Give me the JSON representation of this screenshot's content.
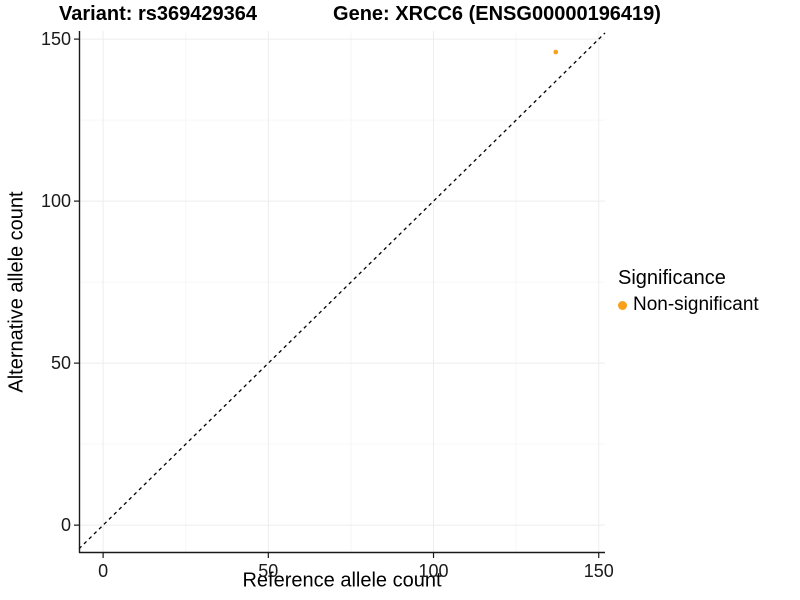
{
  "header": {
    "title_left": "Variant: rs369429364",
    "title_right": "Gene: XRCC6 (ENSG00000196419)"
  },
  "chart_data": {
    "type": "scatter",
    "title_left": "Variant: rs369429364",
    "title_right": "Gene: XRCC6 (ENSG00000196419)",
    "xlabel": "Reference allele count",
    "ylabel": "Alternative allele count",
    "x_ticks": [
      0,
      50,
      100,
      150
    ],
    "y_ticks": [
      0,
      50,
      100,
      150
    ],
    "x_minor_ticks": [
      25,
      75,
      125
    ],
    "y_minor_ticks": [
      25,
      75,
      125
    ],
    "xlim": [
      -7.3,
      151.9
    ],
    "ylim": [
      -8.6,
      152.5
    ],
    "grid": "faint major and minor gridlines on white panel",
    "identity_line": {
      "equation": "y = x",
      "style": "dashed",
      "color": "#000000"
    },
    "points": [
      {
        "x": 137,
        "y": 146,
        "series": "Non-significant"
      }
    ],
    "point_color": "#F9A01B",
    "point_radius": 2.3,
    "legend": {
      "title": "Significance",
      "position": "right",
      "items": [
        {
          "label": "Non-significant",
          "color": "#F9A01B"
        }
      ]
    },
    "colors": {
      "axis_line": "#1a1a1a",
      "tick_text": "#1a1a1a",
      "major_grid": "#ededed",
      "minor_grid": "#f6f6f6"
    }
  }
}
